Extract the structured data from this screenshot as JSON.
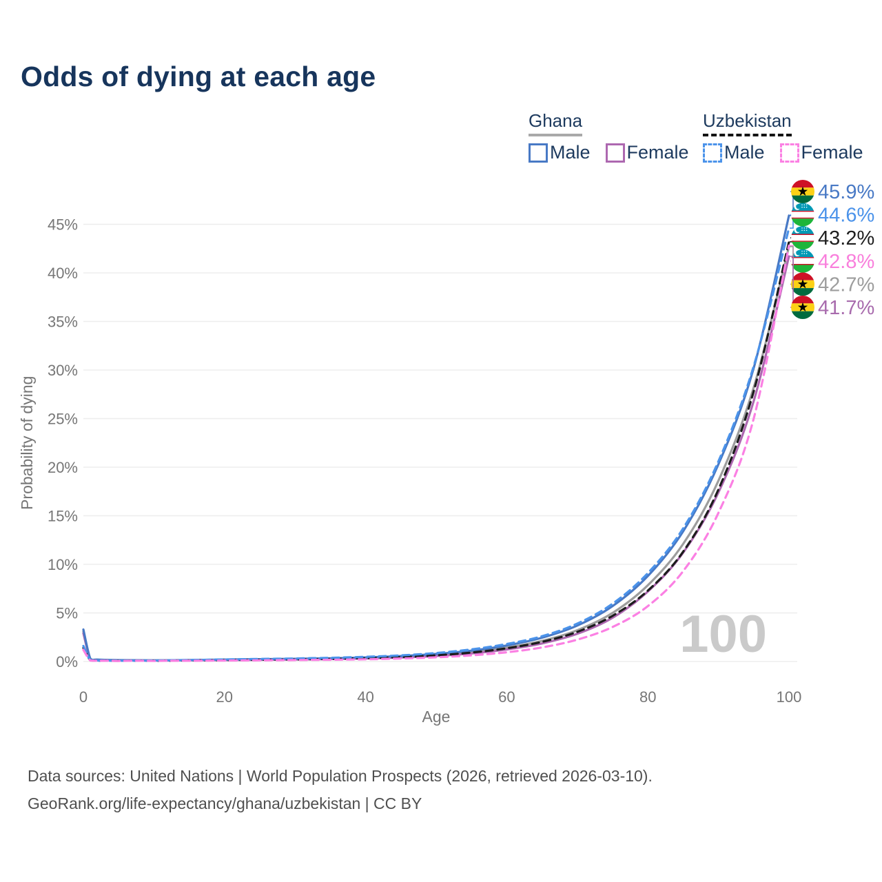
{
  "title": "Odds of dying at each age",
  "watermark": "100",
  "legend": {
    "groups": [
      {
        "name": "Ghana",
        "line_style": "solid",
        "items": [
          {
            "label": "Male",
            "color": "#4879c5",
            "dashed": false
          },
          {
            "label": "Female",
            "color": "#ad68b0",
            "dashed": false
          }
        ]
      },
      {
        "name": "Uzbekistan",
        "line_style": "dashed",
        "items": [
          {
            "label": "Male",
            "color": "#4b93ea",
            "dashed": true
          },
          {
            "label": "Female",
            "color": "#fb80e3",
            "dashed": true
          }
        ]
      }
    ]
  },
  "footer": {
    "line1": "Data sources: United Nations | World Population Prospects (2026, retrieved 2026-03-10).",
    "line2": "GeoRank.org/life-expectancy/ghana/uzbekistan | CC BY"
  },
  "chart_data": {
    "type": "line",
    "title": "Odds of dying at each age",
    "xlabel": "Age",
    "ylabel": "Probability of dying",
    "xlim": [
      0,
      100
    ],
    "ylim": [
      0,
      47
    ],
    "grid": "horizontal",
    "legend_position": "top-right",
    "x_ticks": [
      0,
      20,
      40,
      60,
      80,
      100
    ],
    "y_ticks": [
      0,
      5,
      10,
      15,
      20,
      25,
      30,
      35,
      40,
      45
    ],
    "y_tick_labels": [
      "0%",
      "5%",
      "10%",
      "15%",
      "20%",
      "25%",
      "30%",
      "35%",
      "40%",
      "45%"
    ],
    "ages": [
      0,
      1,
      2,
      5,
      10,
      15,
      20,
      25,
      30,
      35,
      40,
      45,
      50,
      55,
      60,
      65,
      70,
      75,
      80,
      85,
      90,
      95,
      100
    ],
    "series": [
      {
        "key": "gh_t",
        "name": "Ghana",
        "country": "ghana",
        "color": "#9d9d9d",
        "dashed": false,
        "values": [
          3.1,
          0.26,
          0.18,
          0.13,
          0.11,
          0.13,
          0.17,
          0.2,
          0.24,
          0.29,
          0.36,
          0.48,
          0.67,
          0.97,
          1.43,
          2.12,
          3.22,
          5.0,
          7.85,
          12.1,
          18.6,
          28.2,
          42.7
        ]
      },
      {
        "key": "gh_f",
        "name": "Ghana Female",
        "country": "ghana",
        "color": "#ad68b0",
        "dashed": false,
        "values": [
          2.9,
          0.24,
          0.17,
          0.12,
          0.1,
          0.12,
          0.14,
          0.17,
          0.2,
          0.25,
          0.31,
          0.41,
          0.57,
          0.83,
          1.24,
          1.86,
          2.85,
          4.5,
          7.2,
          11.2,
          17.4,
          26.8,
          41.7
        ]
      },
      {
        "key": "gh_m",
        "name": "Ghana Male",
        "country": "ghana",
        "color": "#4879c5",
        "dashed": false,
        "values": [
          3.3,
          0.28,
          0.2,
          0.14,
          0.12,
          0.15,
          0.2,
          0.24,
          0.28,
          0.33,
          0.42,
          0.56,
          0.78,
          1.12,
          1.65,
          2.45,
          3.7,
          5.7,
          8.8,
          13.4,
          20.3,
          30.2,
          45.9
        ]
      },
      {
        "key": "uz_t",
        "name": "Uzbekistan",
        "country": "uzbekistan",
        "color": "#1c1c1c",
        "dashed": true,
        "values": [
          1.4,
          0.12,
          0.09,
          0.07,
          0.08,
          0.11,
          0.15,
          0.18,
          0.22,
          0.27,
          0.34,
          0.45,
          0.63,
          0.92,
          1.36,
          2.02,
          3.05,
          4.7,
          7.3,
          11.3,
          17.7,
          27.8,
          43.2
        ]
      },
      {
        "key": "uz_m",
        "name": "Uzbekistan Male",
        "country": "uzbekistan",
        "color": "#4b93ea",
        "dashed": true,
        "values": [
          1.6,
          0.14,
          0.1,
          0.08,
          0.1,
          0.15,
          0.21,
          0.26,
          0.31,
          0.38,
          0.48,
          0.63,
          0.87,
          1.25,
          1.8,
          2.6,
          3.9,
          5.95,
          9.1,
          13.7,
          20.6,
          30.4,
          44.6
        ]
      },
      {
        "key": "uz_f",
        "name": "Uzbekistan Female",
        "country": "uzbekistan",
        "color": "#fb80e3",
        "dashed": true,
        "values": [
          1.2,
          0.1,
          0.07,
          0.05,
          0.06,
          0.08,
          0.1,
          0.12,
          0.15,
          0.18,
          0.23,
          0.31,
          0.43,
          0.63,
          0.95,
          1.45,
          2.25,
          3.55,
          5.7,
          9.3,
          15.3,
          25.0,
          42.8
        ]
      }
    ],
    "end_labels": [
      {
        "series": "gh_m",
        "label": "45.9%",
        "end_value": 45.9,
        "flag": "ghana",
        "color": "#4879c5"
      },
      {
        "series": "uz_m",
        "label": "44.6%",
        "end_value": 44.6,
        "flag": "uzbekistan",
        "color": "#4b93ea"
      },
      {
        "series": "uz_t",
        "label": "43.2%",
        "end_value": 43.2,
        "flag": "uzbekistan",
        "color": "#1f1f1f"
      },
      {
        "series": "uz_f",
        "label": "42.8%",
        "end_value": 42.8,
        "flag": "uzbekistan",
        "color": "#f97fdc"
      },
      {
        "series": "gh_t",
        "label": "42.7%",
        "end_value": 42.7,
        "flag": "ghana",
        "color": "#9d9d9d"
      },
      {
        "series": "gh_f",
        "label": "41.7%",
        "end_value": 41.7,
        "flag": "ghana",
        "color": "#a86bad"
      }
    ],
    "flag_colors": {
      "ghana": {
        "red": "#ce1126",
        "gold": "#fcd116",
        "green": "#006b3f",
        "star": "#000000"
      },
      "uzbekistan": {
        "blue": "#0099b5",
        "red": "#ce1126",
        "white": "#ffffff",
        "green": "#1eb53a"
      }
    }
  }
}
